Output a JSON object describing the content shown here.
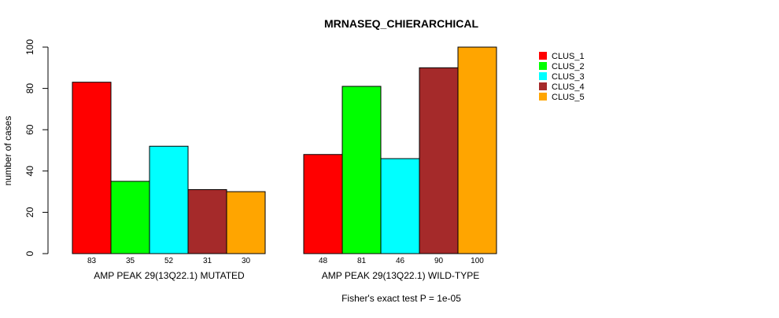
{
  "chart_data": {
    "type": "bar",
    "title": "MRNASEQ_CHIERARCHICAL",
    "ylabel": "number of cases",
    "ylim": [
      0,
      100
    ],
    "yticks": [
      0,
      20,
      40,
      60,
      80,
      100
    ],
    "groups": [
      "AMP PEAK 29(13Q22.1) MUTATED",
      "AMP PEAK 29(13Q22.1) WILD-TYPE"
    ],
    "series": [
      {
        "name": "CLUS_1",
        "color": "#ff0000",
        "values": [
          83,
          48
        ]
      },
      {
        "name": "CLUS_2",
        "color": "#00ff00",
        "values": [
          35,
          81
        ]
      },
      {
        "name": "CLUS_3",
        "color": "#00ffff",
        "values": [
          52,
          46
        ]
      },
      {
        "name": "CLUS_4",
        "color": "#a52a2a",
        "values": [
          31,
          90
        ]
      },
      {
        "name": "CLUS_5",
        "color": "#ffa500",
        "values": [
          30,
          100
        ]
      }
    ],
    "legend_position": "top-right",
    "grid": false,
    "footnote": "Fisher's exact test P = 1e-05"
  }
}
